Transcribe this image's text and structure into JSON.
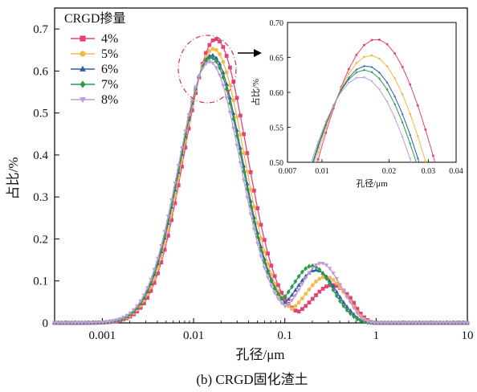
{
  "chart_data": {
    "type": "line",
    "caption": "(b) CRGD固化渣土",
    "xlabel": "孔径/μm",
    "ylabel": "占比/%",
    "xscale": "log",
    "xlim": [
      0.0003,
      10
    ],
    "ylim": [
      0,
      0.75
    ],
    "x_ticks": [
      {
        "value": 0.001,
        "label": "0.001"
      },
      {
        "value": 0.01,
        "label": "0.01"
      },
      {
        "value": 0.1,
        "label": "0.1"
      },
      {
        "value": 1,
        "label": "1"
      },
      {
        "value": 10,
        "label": "10"
      }
    ],
    "y_ticks": [
      {
        "value": 0,
        "label": "0"
      },
      {
        "value": 0.1,
        "label": "0.1"
      },
      {
        "value": 0.2,
        "label": "0.2"
      },
      {
        "value": 0.3,
        "label": "0.3"
      },
      {
        "value": 0.4,
        "label": "0.4"
      },
      {
        "value": 0.5,
        "label": "0.5"
      },
      {
        "value": 0.6,
        "label": "0.6"
      },
      {
        "value": 0.7,
        "label": "0.7"
      }
    ],
    "legend": {
      "title": "CRGD掺量",
      "position": "top-left"
    },
    "series": [
      {
        "name": "4%",
        "color": "#e0457a",
        "marker": "square",
        "peak": {
          "x": 0.0175,
          "y": 0.676
        },
        "shoulder": 0.092,
        "shoulder_x": 0.33
      },
      {
        "name": "5%",
        "color": "#f5b945",
        "marker": "circle",
        "peak": {
          "x": 0.0165,
          "y": 0.653
        },
        "shoulder": 0.112,
        "shoulder_x": 0.28
      },
      {
        "name": "6%",
        "color": "#2f5fa8",
        "marker": "triangle-up",
        "peak": {
          "x": 0.0158,
          "y": 0.638
        },
        "shoulder": 0.128,
        "shoulder_x": 0.22
      },
      {
        "name": "7%",
        "color": "#2e9a4a",
        "marker": "diamond",
        "peak": {
          "x": 0.0155,
          "y": 0.632
        },
        "shoulder": 0.138,
        "shoulder_x": 0.2
      },
      {
        "name": "8%",
        "color": "#c39ad8",
        "marker": "triangle-down",
        "peak": {
          "x": 0.015,
          "y": 0.622
        },
        "shoulder": 0.145,
        "shoulder_x": 0.25
      }
    ],
    "inset": {
      "xlim": [
        0.007,
        0.04
      ],
      "ylim": [
        0.5,
        0.7
      ],
      "xlabel": "孔径/μm",
      "ylabel": "占比/%",
      "x_ticks": [
        {
          "value": 0.007,
          "label": "0.007"
        },
        {
          "value": 0.01,
          "label": "0.01"
        },
        {
          "value": 0.02,
          "label": "0.02"
        },
        {
          "value": 0.03,
          "label": "0.03"
        },
        {
          "value": 0.04,
          "label": "0.04"
        }
      ],
      "y_ticks": [
        {
          "value": 0.5,
          "label": "0.50"
        },
        {
          "value": 0.55,
          "label": "0.55"
        },
        {
          "value": 0.6,
          "label": "0.60"
        },
        {
          "value": 0.65,
          "label": "0.65"
        },
        {
          "value": 0.7,
          "label": "0.70"
        }
      ]
    }
  }
}
